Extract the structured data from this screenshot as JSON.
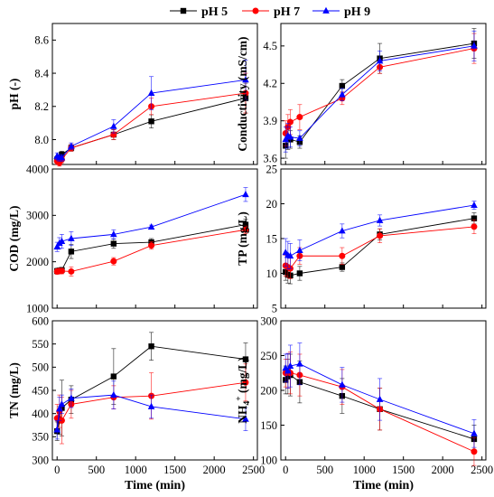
{
  "legend": [
    {
      "name": "pH 5",
      "color": "#000000",
      "marker": "square"
    },
    {
      "name": "pH 7",
      "color": "#ff0000",
      "marker": "circle"
    },
    {
      "name": "pH 9",
      "color": "#0000ff",
      "marker": "triangle"
    }
  ],
  "chart_data": [
    {
      "type": "line",
      "ylabel": "pH (-)",
      "xlabel": "",
      "ylim": [
        7.85,
        8.7
      ],
      "yticks": [
        "8.0",
        "8.2",
        "8.4",
        "8.6"
      ],
      "xlim": [
        -60,
        2550
      ],
      "xticks": [],
      "grid": false,
      "x": [
        0,
        30,
        60,
        180,
        720,
        1200,
        2400
      ],
      "series": [
        {
          "name": "pH 5",
          "values": [
            7.88,
            7.89,
            7.91,
            7.95,
            8.03,
            8.11,
            8.25
          ],
          "err": [
            0.02,
            0.02,
            0.02,
            0.02,
            0.03,
            0.04,
            0.09
          ]
        },
        {
          "name": "pH 7",
          "values": [
            7.87,
            7.86,
            7.88,
            7.95,
            8.03,
            8.2,
            8.28
          ],
          "err": [
            0.02,
            0.02,
            0.02,
            0.02,
            0.03,
            0.05,
            0.12
          ]
        },
        {
          "name": "pH 9",
          "values": [
            7.9,
            7.89,
            7.89,
            7.96,
            8.08,
            8.28,
            8.36
          ],
          "err": [
            0.02,
            0.02,
            0.02,
            0.02,
            0.04,
            0.1,
            0.12
          ]
        }
      ]
    },
    {
      "type": "line",
      "ylabel": "Conductivity (mS/cm)",
      "xlabel": "",
      "ylim": [
        3.55,
        4.68
      ],
      "yticks": [
        "3.6",
        "3.9",
        "4.2",
        "4.5"
      ],
      "xlim": [
        -60,
        2550
      ],
      "xticks": [],
      "grid": false,
      "x": [
        0,
        30,
        60,
        180,
        720,
        1200,
        2400
      ],
      "series": [
        {
          "name": "pH 5",
          "values": [
            3.7,
            3.77,
            3.75,
            3.73,
            4.18,
            4.4,
            4.52
          ],
          "err": [
            0.1,
            0.1,
            0.07,
            0.05,
            0.05,
            0.12,
            0.12
          ]
        },
        {
          "name": "pH 7",
          "values": [
            3.8,
            3.85,
            3.89,
            3.93,
            4.08,
            4.33,
            4.48
          ],
          "err": [
            0.1,
            0.1,
            0.1,
            0.1,
            0.05,
            0.05,
            0.12
          ]
        },
        {
          "name": "pH 9",
          "values": [
            3.75,
            3.78,
            3.77,
            3.76,
            4.11,
            4.38,
            4.5
          ],
          "err": [
            0.1,
            0.1,
            0.08,
            0.06,
            0.05,
            0.08,
            0.12
          ]
        }
      ]
    },
    {
      "type": "line",
      "ylabel": "COD (mg/L)",
      "xlabel": "",
      "ylim": [
        1000,
        4000
      ],
      "yticks": [
        "1000",
        "2000",
        "3000",
        "4000"
      ],
      "xlim": [
        -60,
        2550
      ],
      "xticks": [],
      "grid": false,
      "x": [
        0,
        30,
        60,
        180,
        720,
        1200,
        2400
      ],
      "series": [
        {
          "name": "pH 5",
          "values": [
            1800,
            1810,
            1820,
            2220,
            2390,
            2420,
            2800
          ],
          "err": [
            60,
            60,
            60,
            150,
            100,
            80,
            120
          ]
        },
        {
          "name": "pH 7",
          "values": [
            1790,
            1800,
            1800,
            1790,
            2010,
            2350,
            2690
          ],
          "err": [
            60,
            60,
            60,
            100,
            80,
            80,
            80
          ]
        },
        {
          "name": "pH 9",
          "values": [
            2320,
            2400,
            2440,
            2500,
            2590,
            2750,
            3450
          ],
          "err": [
            100,
            120,
            150,
            150,
            100,
            40,
            150
          ]
        }
      ]
    },
    {
      "type": "line",
      "ylabel": "TP (mg/L)",
      "xlabel": "",
      "ylim": [
        5,
        25
      ],
      "yticks": [
        "5",
        "10",
        "15",
        "20",
        "25"
      ],
      "xlim": [
        -60,
        2550
      ],
      "xticks": [],
      "grid": false,
      "x": [
        0,
        30,
        60,
        180,
        720,
        1200,
        2400
      ],
      "series": [
        {
          "name": "pH 5",
          "values": [
            10.2,
            9.8,
            9.7,
            10.0,
            10.9,
            15.6,
            17.9
          ],
          "err": [
            1.2,
            1.2,
            1.2,
            1.0,
            0.6,
            0.8,
            0.8
          ]
        },
        {
          "name": "pH 7",
          "values": [
            11.1,
            10.9,
            10.7,
            12.5,
            12.5,
            15.4,
            16.7
          ],
          "err": [
            1.5,
            1.5,
            1.5,
            1.2,
            1.2,
            1.0,
            1.0
          ]
        },
        {
          "name": "pH 9",
          "values": [
            13.0,
            12.6,
            12.5,
            13.3,
            16.1,
            17.6,
            19.8
          ],
          "err": [
            2.0,
            2.0,
            1.8,
            1.5,
            1.0,
            0.8,
            0.6
          ]
        }
      ]
    },
    {
      "type": "line",
      "ylabel": "TN (mg/L)",
      "xlabel": "Time (min)",
      "ylim": [
        300,
        600
      ],
      "yticks": [
        "300",
        "350",
        "400",
        "450",
        "500",
        "550",
        "600"
      ],
      "xlim": [
        -60,
        2550
      ],
      "xticks": [
        "0",
        "500",
        "1000",
        "1500",
        "2000",
        "2500"
      ],
      "grid": false,
      "x": [
        0,
        30,
        60,
        180,
        720,
        1200,
        2400
      ],
      "series": [
        {
          "name": "pH 5",
          "values": [
            362,
            385,
            412,
            430,
            480,
            545,
            517
          ],
          "err": [
            20,
            30,
            60,
            30,
            60,
            30,
            35
          ]
        },
        {
          "name": "pH 7",
          "values": [
            390,
            405,
            385,
            420,
            435,
            438,
            467
          ],
          "err": [
            30,
            35,
            50,
            30,
            25,
            50,
            40
          ]
        },
        {
          "name": "pH 9",
          "values": [
            365,
            410,
            420,
            433,
            440,
            415,
            388
          ],
          "err": [
            20,
            25,
            20,
            20,
            30,
            25,
            25
          ]
        }
      ]
    },
    {
      "type": "line",
      "ylabel": "NH4+ (mg/L)",
      "xlabel": "Time (min)",
      "ylim": [
        100,
        300
      ],
      "yticks": [
        "100",
        "150",
        "200",
        "250",
        "300"
      ],
      "xlim": [
        -60,
        2550
      ],
      "xticks": [
        "0",
        "500",
        "1000",
        "1500",
        "2000",
        "2500"
      ],
      "grid": false,
      "x": [
        0,
        30,
        60,
        180,
        720,
        1200,
        2400
      ],
      "series": [
        {
          "name": "pH 5",
          "values": [
            215,
            220,
            222,
            212,
            192,
            173,
            130
          ],
          "err": [
            20,
            25,
            30,
            30,
            25,
            30,
            20
          ]
        },
        {
          "name": "pH 7",
          "values": [
            225,
            228,
            225,
            222,
            205,
            173,
            112
          ],
          "err": [
            20,
            25,
            30,
            30,
            25,
            30,
            20
          ]
        },
        {
          "name": "pH 9",
          "values": [
            232,
            228,
            235,
            238,
            208,
            187,
            138
          ],
          "err": [
            20,
            25,
            30,
            30,
            25,
            30,
            20
          ]
        }
      ]
    }
  ]
}
